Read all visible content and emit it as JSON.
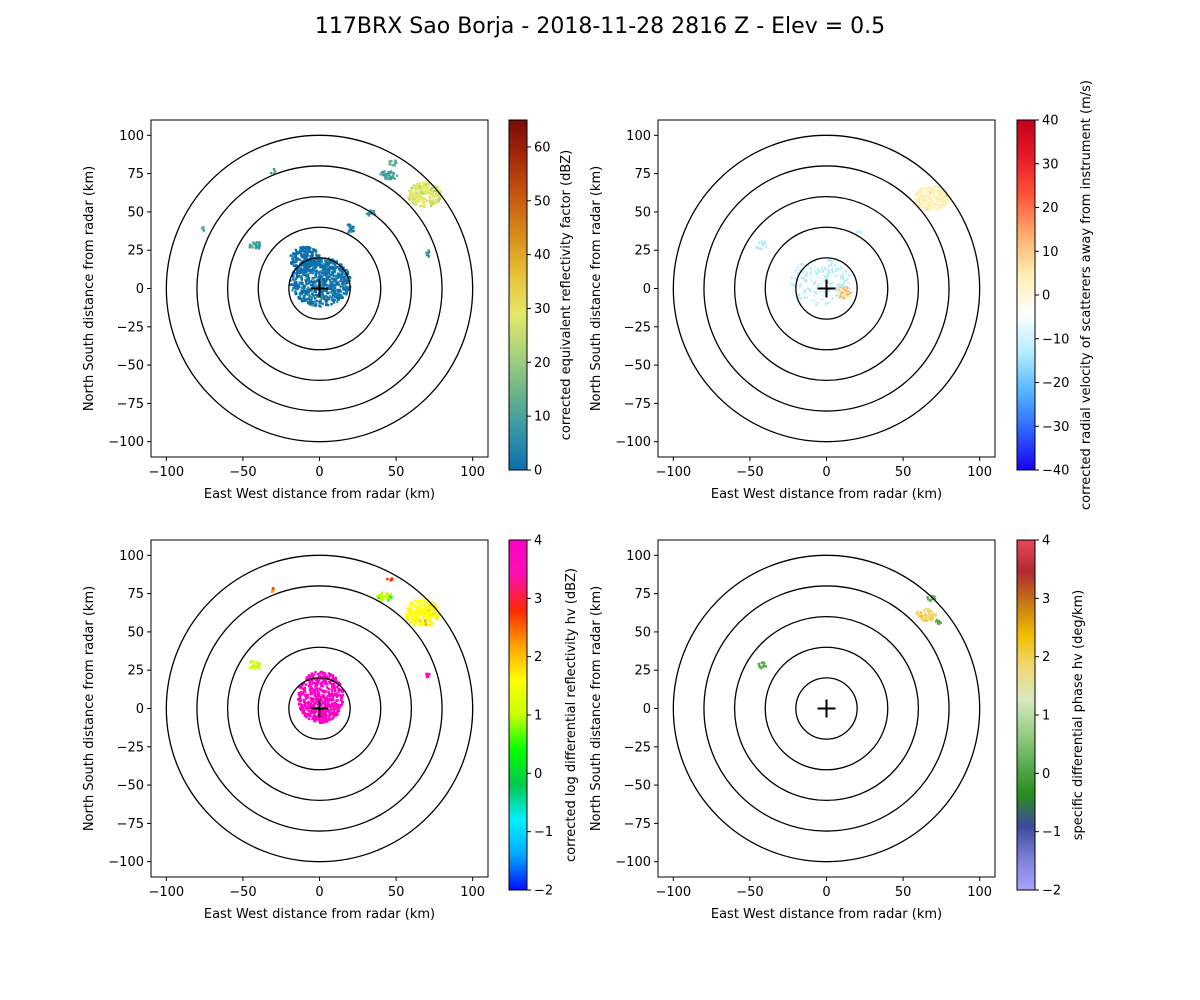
{
  "figure": {
    "title": "117BRX Sao Borja - 2018-11-28 2816 Z -  Elev = 0.5"
  },
  "chart_data": [
    {
      "type": "radar-ppi",
      "xlabel": "East West distance from radar (km)",
      "ylabel": "North South distance from radar (km)",
      "xlim": [
        -110,
        110
      ],
      "ylim": [
        -110,
        110
      ],
      "xticks": [
        -100,
        -50,
        0,
        50,
        100
      ],
      "yticks": [
        -100,
        -75,
        -50,
        -25,
        0,
        25,
        50,
        75,
        100
      ],
      "range_rings_km": [
        20,
        40,
        60,
        80,
        100
      ],
      "colorbar": {
        "label": "corrected equivalent reflectivity factor (dBZ)",
        "min": 0,
        "max": 65,
        "ticks": [
          0,
          10,
          20,
          30,
          40,
          50,
          60
        ],
        "colors": [
          "#0a6fae",
          "#3596a8",
          "#6cb58a",
          "#a9d27a",
          "#e4e868",
          "#e8c13a",
          "#d98e1a",
          "#c75b0e",
          "#a82a09",
          "#7a0a08"
        ]
      },
      "echoes": [
        {
          "x": 0,
          "y": 5,
          "rx": 20,
          "ry": 16,
          "value": 5
        },
        {
          "x": -10,
          "y": 20,
          "rx": 10,
          "ry": 8,
          "value": 4
        },
        {
          "x": 68,
          "y": 62,
          "rx": 11,
          "ry": 8,
          "value": 28
        },
        {
          "x": 45,
          "y": 75,
          "rx": 6,
          "ry": 3,
          "value": 13
        },
        {
          "x": 47,
          "y": 83,
          "rx": 3,
          "ry": 2,
          "value": 15
        },
        {
          "x": -43,
          "y": 29,
          "rx": 4,
          "ry": 3,
          "value": 12
        },
        {
          "x": 33,
          "y": 50,
          "rx": 3,
          "ry": 2,
          "value": 9
        },
        {
          "x": 19,
          "y": 40,
          "rx": 3,
          "ry": 3,
          "value": 6
        },
        {
          "x": 70,
          "y": 23,
          "rx": 1.5,
          "ry": 3,
          "value": 14
        },
        {
          "x": -31,
          "y": 77,
          "rx": 1.5,
          "ry": 2,
          "value": 12
        },
        {
          "x": -76,
          "y": 40,
          "rx": 1.5,
          "ry": 1.5,
          "value": 12
        }
      ]
    },
    {
      "type": "radar-ppi",
      "xlabel": "East West distance from radar (km)",
      "ylabel": "North South distance from radar (km)",
      "xlim": [
        -110,
        110
      ],
      "ylim": [
        -110,
        110
      ],
      "xticks": [
        -100,
        -50,
        0,
        50,
        100
      ],
      "yticks": [
        -100,
        -75,
        -50,
        -25,
        0,
        25,
        50,
        75,
        100
      ],
      "range_rings_km": [
        20,
        40,
        60,
        80,
        100
      ],
      "colorbar": {
        "label": "corrected radial velocity of scatterers away from instrument (m/s)",
        "min": -40,
        "max": 40,
        "ticks": [
          -40,
          -30,
          -20,
          -10,
          0,
          10,
          20,
          30,
          40
        ],
        "colors": [
          "#1a00f0",
          "#2d62ff",
          "#52b4ff",
          "#b2ecff",
          "#ffffff",
          "#fff0b4",
          "#ffb06e",
          "#ff5a3c",
          "#e81c28",
          "#c4001e"
        ]
      },
      "echoes": [
        {
          "x": -5,
          "y": 5,
          "rx": 20,
          "ry": 15,
          "value": -7
        },
        {
          "x": 10,
          "y": -2,
          "rx": 5,
          "ry": 4,
          "value": 8
        },
        {
          "x": 68,
          "y": 60,
          "rx": 11,
          "ry": 8,
          "value": 5
        },
        {
          "x": -43,
          "y": 29,
          "rx": 4,
          "ry": 3,
          "value": -8
        },
        {
          "x": 20,
          "y": 38,
          "rx": 2,
          "ry": 2,
          "value": -9
        }
      ]
    },
    {
      "type": "radar-ppi",
      "xlabel": "East West distance from radar (km)",
      "ylabel": "North South distance from radar (km)",
      "xlim": [
        -110,
        110
      ],
      "ylim": [
        -110,
        110
      ],
      "xticks": [
        -100,
        -50,
        0,
        50,
        100
      ],
      "yticks": [
        -100,
        -75,
        -50,
        -25,
        0,
        25,
        50,
        75,
        100
      ],
      "range_rings_km": [
        20,
        40,
        60,
        80,
        100
      ],
      "colorbar": {
        "label": "corrected log differential reflectivity hv (dBZ)",
        "min": -2,
        "max": 4,
        "ticks": [
          -2,
          -1,
          0,
          1,
          2,
          3,
          4
        ],
        "colors": [
          "#0010ff",
          "#00a8ff",
          "#00f0ff",
          "#00c850",
          "#00ff00",
          "#c8ff00",
          "#ffff00",
          "#ffa000",
          "#ff2800",
          "#ff10b0",
          "#ff00c8"
        ]
      },
      "echoes": [
        {
          "x": 0,
          "y": 8,
          "rx": 15,
          "ry": 17,
          "value": 3.9
        },
        {
          "x": 66,
          "y": 63,
          "rx": 11,
          "ry": 9,
          "value": 1.6
        },
        {
          "x": 42,
          "y": 74,
          "rx": 5,
          "ry": 3,
          "value": 0.9
        },
        {
          "x": -43,
          "y": 29,
          "rx": 4,
          "ry": 3,
          "value": 1.1
        },
        {
          "x": 45,
          "y": 85,
          "rx": 2,
          "ry": 1,
          "value": 2.8
        },
        {
          "x": 70,
          "y": 23,
          "rx": 1,
          "ry": 2,
          "value": 3.9
        },
        {
          "x": -31,
          "y": 78,
          "rx": 1.2,
          "ry": 1.2,
          "value": 2.2
        }
      ]
    },
    {
      "type": "radar-ppi",
      "xlabel": "East West distance from radar (km)",
      "ylabel": "North South distance from radar (km)",
      "xlim": [
        -110,
        110
      ],
      "ylim": [
        -110,
        110
      ],
      "xticks": [
        -100,
        -50,
        0,
        50,
        100
      ],
      "yticks": [
        -100,
        -75,
        -50,
        -25,
        0,
        25,
        50,
        75,
        100
      ],
      "range_rings_km": [
        20,
        40,
        60,
        80,
        100
      ],
      "colorbar": {
        "label": "specific differential phase hv (deg/km)",
        "min": -2,
        "max": 4,
        "ticks": [
          -2,
          -1,
          0,
          1,
          2,
          3,
          4
        ],
        "colors": [
          "#a6a2ff",
          "#7e7ed8",
          "#3d4a9e",
          "#2a8c1c",
          "#5cae54",
          "#9ed08a",
          "#d8e8c0",
          "#f0d878",
          "#f0be00",
          "#c87a14",
          "#b02a30",
          "#e8485c"
        ]
      },
      "echoes": [
        {
          "x": 64,
          "y": 62,
          "rx": 7,
          "ry": 4,
          "value": 1.8
        },
        {
          "x": 68,
          "y": 73,
          "rx": 3,
          "ry": 2,
          "value": 0.3
        },
        {
          "x": 72,
          "y": 57,
          "rx": 2,
          "ry": 2,
          "value": 0.1
        },
        {
          "x": -43,
          "y": 29,
          "rx": 3,
          "ry": 2,
          "value": 0.2
        }
      ]
    }
  ]
}
